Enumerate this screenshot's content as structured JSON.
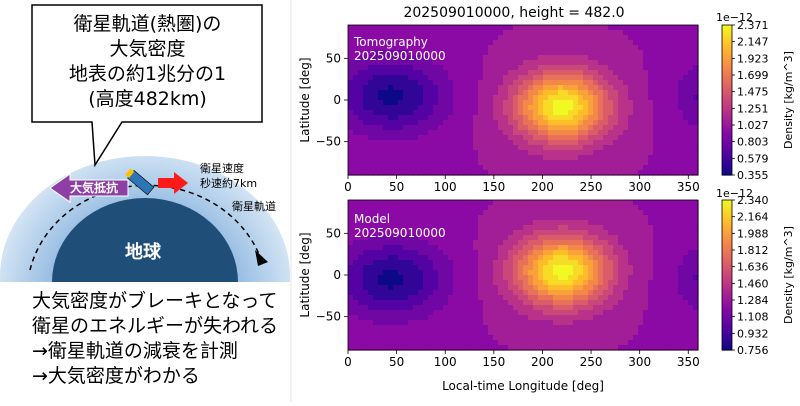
{
  "left_panel": {
    "callout_lines": [
      "衛星軌道(熱圏)の",
      "大気密度",
      "地表の約1兆分の1",
      "(高度482km)"
    ],
    "drag_label": "大気抵抗",
    "speed_label_1": "衛星速度",
    "speed_label_2": "秒速約7km",
    "orbit_label": "衛星軌道",
    "earth_label": "地球",
    "notes": [
      "大気密度がブレーキとなって",
      "衛星のエネルギーが失われる",
      "→衛星軌道の減衰を計測",
      "→大気密度がわかる"
    ]
  },
  "figure": {
    "suptitle": "202509010000, height = 482.0"
  },
  "chart_data": [
    {
      "type": "heatmap",
      "annotation": [
        "Tomography",
        "202509010000"
      ],
      "xlabel": "",
      "ylabel": "Latitude [deg]",
      "xlim": [
        0,
        360
      ],
      "ylim": [
        -90,
        90
      ],
      "x_ticks": [
        "0",
        "50",
        "100",
        "150",
        "200",
        "250",
        "300",
        "350"
      ],
      "y_ticks": [
        "50",
        "0",
        "−50"
      ],
      "colorbar_label": "Density [kg/m^3]",
      "colorbar_scale": "1e−12",
      "colorbar_ticks": [
        "2.371",
        "2.147",
        "1.923",
        "1.699",
        "1.475",
        "1.251",
        "1.027",
        "0.803",
        "0.579",
        "0.355"
      ],
      "vmin": 0.355,
      "vmax": 2.371,
      "colormap": "plasma",
      "peak": {
        "longitude": 220,
        "latitude": -8,
        "value": 2.371
      },
      "min_region": {
        "longitude": 45,
        "latitude": 5,
        "value": 0.355
      }
    },
    {
      "type": "heatmap",
      "annotation": [
        "Model",
        "202509010000"
      ],
      "xlabel": "Local-time Longitude [deg]",
      "ylabel": "Latitude [deg]",
      "xlim": [
        0,
        360
      ],
      "ylim": [
        -90,
        90
      ],
      "x_ticks": [
        "0",
        "50",
        "100",
        "150",
        "200",
        "250",
        "300",
        "350"
      ],
      "y_ticks": [
        "50",
        "0",
        "−50"
      ],
      "colorbar_label": "Density [kg/m^3]",
      "colorbar_scale": "1e−12",
      "colorbar_ticks": [
        "2.340",
        "2.164",
        "1.988",
        "1.812",
        "1.636",
        "1.460",
        "1.284",
        "1.108",
        "0.932",
        "0.756"
      ],
      "vmin": 0.756,
      "vmax": 2.34,
      "colormap": "plasma",
      "peak": {
        "longitude": 220,
        "latitude": 5,
        "value": 2.34
      },
      "min_region": {
        "longitude": 45,
        "latitude": -5,
        "value": 0.756
      }
    }
  ],
  "colors": {
    "drag_arrow": "#8e3fa5",
    "speed_arrow": "#ff1a1a",
    "earth": "#1f4e79",
    "atmosphere": "#bdd7ee",
    "satellite": "#2e75b6"
  }
}
